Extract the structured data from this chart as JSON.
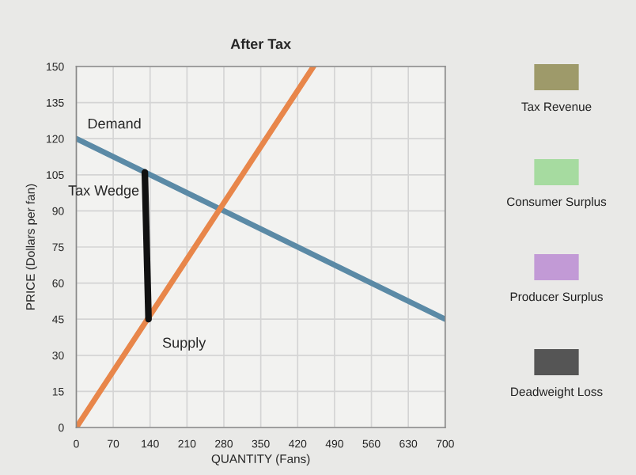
{
  "chart_data": {
    "type": "line",
    "title": "After Tax",
    "xlabel": "QUANTITY (Fans)",
    "ylabel": "PRICE (Dollars per fan)",
    "series": [
      {
        "name": "Demand",
        "color": "#5b8aa6",
        "x": [
          0,
          700
        ],
        "values": [
          120,
          45
        ]
      },
      {
        "name": "Supply",
        "color": "#e8864a",
        "x": [
          0,
          450
        ],
        "values": [
          0,
          150
        ]
      },
      {
        "name": "Tax Wedge",
        "color": "#111111",
        "x": [
          130,
          137
        ],
        "values": [
          106,
          45
        ]
      }
    ],
    "annotations": [
      "Tax Revenue",
      "Consumer Surplus",
      "Producer Surplus",
      "Deadweight Loss"
    ],
    "xlim": [
      0,
      700
    ],
    "ylim": [
      0,
      150
    ],
    "xticks": [
      0,
      70,
      140,
      210,
      280,
      350,
      420,
      490,
      560,
      630,
      700
    ],
    "yticks": [
      0,
      15,
      30,
      45,
      60,
      75,
      90,
      105,
      120,
      135,
      150
    ],
    "grid": true,
    "marker": "none"
  }
}
